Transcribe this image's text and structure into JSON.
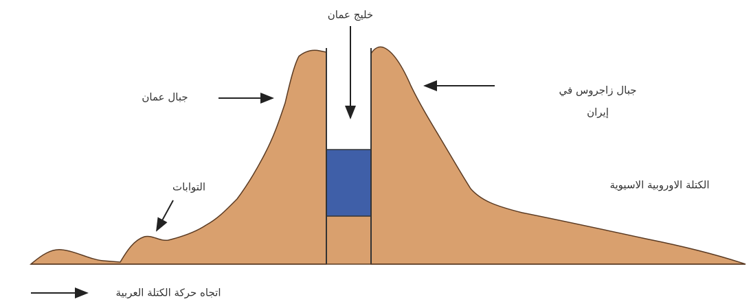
{
  "labels": {
    "gulf": "خليج عمان",
    "oman_mountains": "جبال عمان",
    "zagros_line1": "جبال زاجروس في",
    "zagros_line2": "إيران",
    "folds": "التوابات",
    "eurasian_plate": "الكتلة الاوروبية الاسيوية",
    "arabian_motion": "اتجاه حركة الكتلة العربية"
  }
}
